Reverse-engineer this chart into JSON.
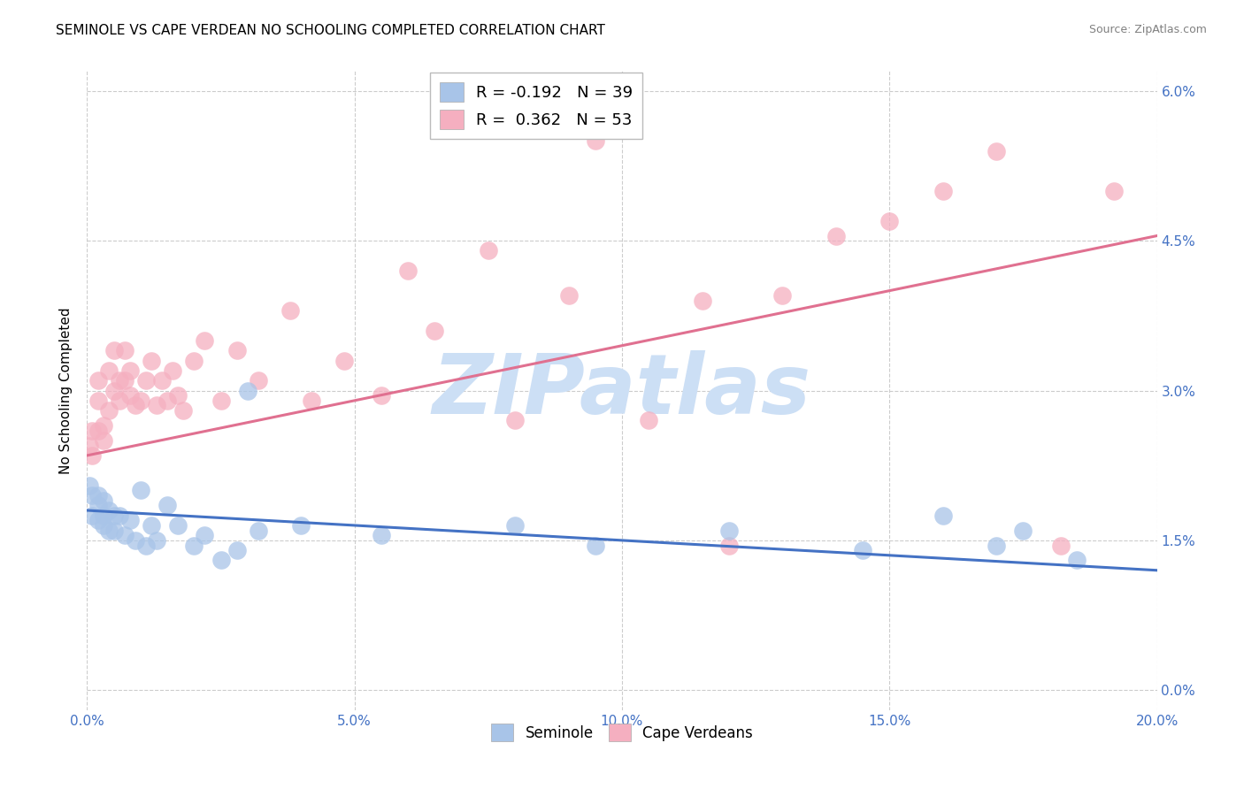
{
  "title": "SEMINOLE VS CAPE VERDEAN NO SCHOOLING COMPLETED CORRELATION CHART",
  "source": "Source: ZipAtlas.com",
  "ylabel": "No Schooling Completed",
  "xlim": [
    0.0,
    0.2
  ],
  "ylim": [
    -0.002,
    0.062
  ],
  "yticks": [
    0.0,
    0.015,
    0.03,
    0.045,
    0.06
  ],
  "xticks": [
    0.0,
    0.05,
    0.1,
    0.15,
    0.2
  ],
  "seminole_R": "-0.192",
  "seminole_N": "39",
  "capeverdean_R": "0.362",
  "capeverdean_N": "53",
  "seminole_color": "#a8c4e8",
  "capeverdean_color": "#f5afc0",
  "seminole_line_color": "#4472c4",
  "capeverdean_line_color": "#e07090",
  "watermark": "ZIPatlas",
  "watermark_color": "#ccdff5",
  "seminole_scatter_x": [
    0.0005,
    0.001,
    0.001,
    0.002,
    0.002,
    0.002,
    0.003,
    0.003,
    0.003,
    0.004,
    0.004,
    0.005,
    0.005,
    0.006,
    0.007,
    0.008,
    0.009,
    0.01,
    0.011,
    0.012,
    0.013,
    0.015,
    0.017,
    0.02,
    0.022,
    0.025,
    0.028,
    0.03,
    0.032,
    0.04,
    0.055,
    0.08,
    0.095,
    0.12,
    0.145,
    0.16,
    0.17,
    0.175,
    0.185
  ],
  "seminole_scatter_y": [
    0.0205,
    0.0195,
    0.0175,
    0.0195,
    0.0185,
    0.017,
    0.019,
    0.0175,
    0.0165,
    0.018,
    0.016,
    0.0175,
    0.016,
    0.0175,
    0.0155,
    0.017,
    0.015,
    0.02,
    0.0145,
    0.0165,
    0.015,
    0.0185,
    0.0165,
    0.0145,
    0.0155,
    0.013,
    0.014,
    0.03,
    0.016,
    0.0165,
    0.0155,
    0.0165,
    0.0145,
    0.016,
    0.014,
    0.0175,
    0.0145,
    0.016,
    0.013
  ],
  "capeverdean_scatter_x": [
    0.0005,
    0.001,
    0.001,
    0.002,
    0.002,
    0.002,
    0.003,
    0.003,
    0.004,
    0.004,
    0.005,
    0.005,
    0.006,
    0.006,
    0.007,
    0.007,
    0.008,
    0.008,
    0.009,
    0.01,
    0.011,
    0.012,
    0.013,
    0.014,
    0.015,
    0.016,
    0.017,
    0.018,
    0.02,
    0.022,
    0.025,
    0.028,
    0.032,
    0.038,
    0.042,
    0.048,
    0.055,
    0.06,
    0.065,
    0.075,
    0.08,
    0.09,
    0.095,
    0.105,
    0.115,
    0.12,
    0.13,
    0.14,
    0.15,
    0.16,
    0.17,
    0.182,
    0.192
  ],
  "capeverdean_scatter_y": [
    0.0245,
    0.0235,
    0.026,
    0.026,
    0.029,
    0.031,
    0.025,
    0.0265,
    0.028,
    0.032,
    0.03,
    0.034,
    0.029,
    0.031,
    0.031,
    0.034,
    0.0295,
    0.032,
    0.0285,
    0.029,
    0.031,
    0.033,
    0.0285,
    0.031,
    0.029,
    0.032,
    0.0295,
    0.028,
    0.033,
    0.035,
    0.029,
    0.034,
    0.031,
    0.038,
    0.029,
    0.033,
    0.0295,
    0.042,
    0.036,
    0.044,
    0.027,
    0.0395,
    0.055,
    0.027,
    0.039,
    0.0145,
    0.0395,
    0.0455,
    0.047,
    0.05,
    0.054,
    0.0145,
    0.05
  ],
  "seminole_trendline_x": [
    0.0,
    0.2
  ],
  "seminole_trendline_y": [
    0.018,
    0.012
  ],
  "capeverdean_trendline_x": [
    0.0,
    0.2
  ],
  "capeverdean_trendline_y": [
    0.0235,
    0.0455
  ],
  "background_color": "#ffffff",
  "grid_color": "#cccccc",
  "title_fontsize": 11,
  "source_fontsize": 9,
  "tick_fontsize": 11,
  "label_fontsize": 11
}
